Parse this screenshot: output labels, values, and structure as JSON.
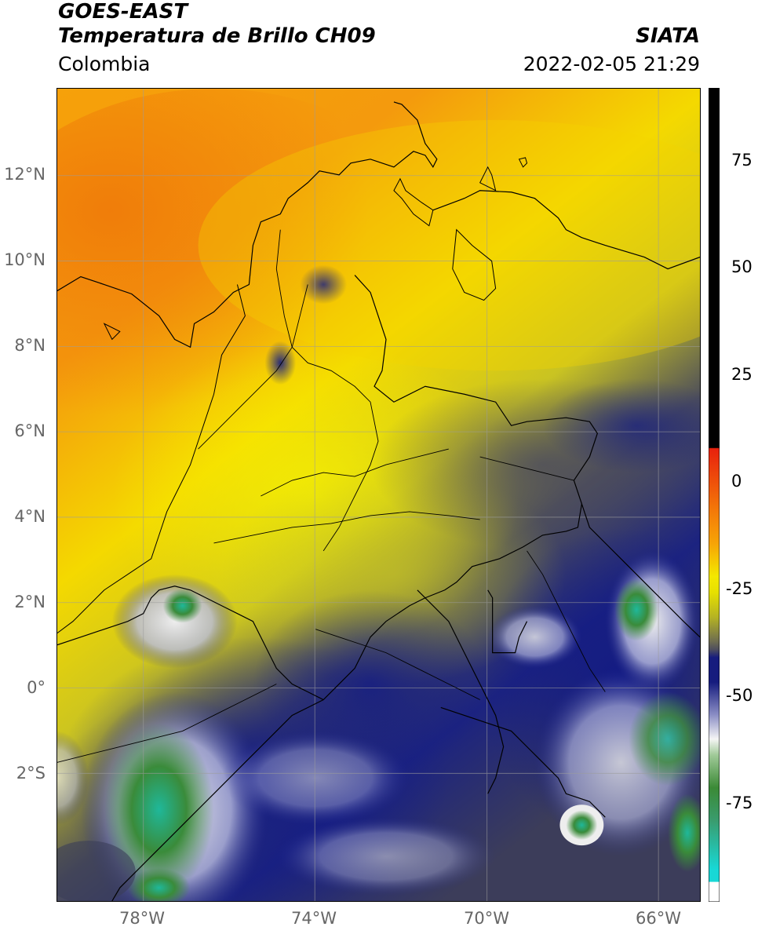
{
  "header": {
    "satellite": "GOES-EAST",
    "product": "Temperatura de Brillo CH09",
    "region": "Colombia",
    "organization": "SIATA",
    "timestamp": "2022-02-05 21:29"
  },
  "axes": {
    "lat_labels": [
      "12°N",
      "10°N",
      "8°N",
      "6°N",
      "4°N",
      "2°N",
      "0°",
      "2°S"
    ],
    "lon_labels": [
      "78°W",
      "74°W",
      "70°W",
      "66°W"
    ]
  },
  "colorbar": {
    "labels": [
      "75",
      "50",
      "25",
      "0",
      "-25",
      "-50",
      "-75"
    ],
    "unit": "",
    "colors": {
      "black": "#000000",
      "red": "#e8210d",
      "orange": "#f79a06",
      "yellow": "#f4f000",
      "olive": "#b5b323",
      "gray": "#6b6a4a",
      "navy": "#141a7c",
      "white": "#f3f3f3",
      "green": "#3b8a36",
      "cyan": "#18d8d6"
    }
  }
}
